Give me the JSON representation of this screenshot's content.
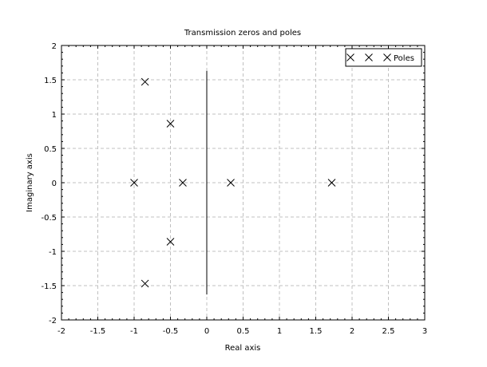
{
  "chart_data": {
    "type": "scatter",
    "title": "Transmission zeros and poles",
    "xlabel": "Real axis",
    "ylabel": "Imaginary axis",
    "xlim": [
      -2,
      3
    ],
    "ylim": [
      -2,
      2
    ],
    "xticks": [
      -2,
      -1.5,
      -1,
      -0.5,
      0,
      0.5,
      1,
      1.5,
      2,
      2.5,
      3
    ],
    "yticks": [
      -2,
      -1.5,
      -1,
      -0.5,
      0,
      0.5,
      1,
      1.5,
      2
    ],
    "xtick_labels": [
      "-2",
      "-1.5",
      "-1",
      "-0.5",
      "0",
      "0.5",
      "1",
      "1.5",
      "2",
      "2.5",
      "3"
    ],
    "ytick_labels": [
      "-2",
      "-1.5",
      "-1",
      "-0.5",
      "0",
      "0.5",
      "1",
      "1.5",
      "2"
    ],
    "grid": true,
    "legend_position": "top-right",
    "series": [
      {
        "name": "Poles",
        "marker": "x",
        "color": "#000000",
        "points": [
          {
            "x": -0.85,
            "y": 1.47
          },
          {
            "x": -0.5,
            "y": 0.86
          },
          {
            "x": -1.0,
            "y": 0.0
          },
          {
            "x": -0.33,
            "y": 0.0
          },
          {
            "x": 0.33,
            "y": 0.0
          },
          {
            "x": 1.72,
            "y": 0.0
          },
          {
            "x": -0.5,
            "y": -0.86
          },
          {
            "x": -0.85,
            "y": -1.47
          }
        ]
      }
    ],
    "vertical_line": {
      "x": 0,
      "y_from": -1.63,
      "y_to": 1.63,
      "color": "#000000"
    }
  }
}
